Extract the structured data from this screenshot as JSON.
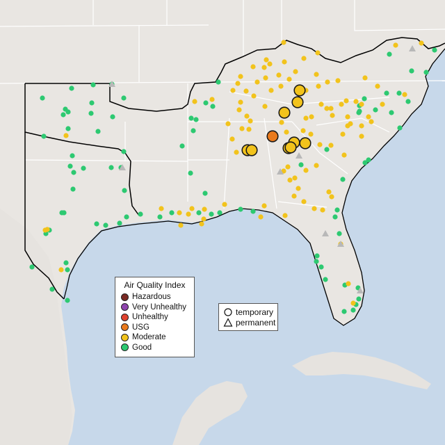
{
  "map": {
    "land_color": "#e9e6e2",
    "water_color": "#c7d8ea",
    "border_color": "#ffffff",
    "outline_color": "#000000"
  },
  "legend": {
    "title": "Air Quality Index",
    "items": [
      {
        "label": "Hazardous",
        "color": "#7a2a24"
      },
      {
        "label": "Very Unhealthy",
        "color": "#8e44ad"
      },
      {
        "label": "Unhealthy",
        "color": "#e0422e"
      },
      {
        "label": "USG",
        "color": "#ea7a1c"
      },
      {
        "label": "Moderate",
        "color": "#f2c31c"
      },
      {
        "label": "Good",
        "color": "#2dc971"
      }
    ]
  },
  "shape_legend": {
    "items": [
      {
        "label": "temporary",
        "shape": "circle"
      },
      {
        "label": "permanent",
        "shape": "triangle"
      }
    ]
  },
  "monitors": {
    "temporary_large": [
      {
        "aqi": "USG"
      },
      {
        "aqi": "Moderate"
      },
      {
        "aqi": "Moderate"
      },
      {
        "aqi": "Moderate"
      },
      {
        "aqi": "Moderate"
      },
      {
        "aqi": "Moderate"
      },
      {
        "aqi": "Moderate"
      },
      {
        "aqi": "Moderate"
      },
      {
        "aqi": "Moderate"
      },
      {
        "aqi": "Moderate"
      }
    ],
    "permanent_count": 8,
    "small_moderate_count": 110,
    "small_good_count": 110
  }
}
